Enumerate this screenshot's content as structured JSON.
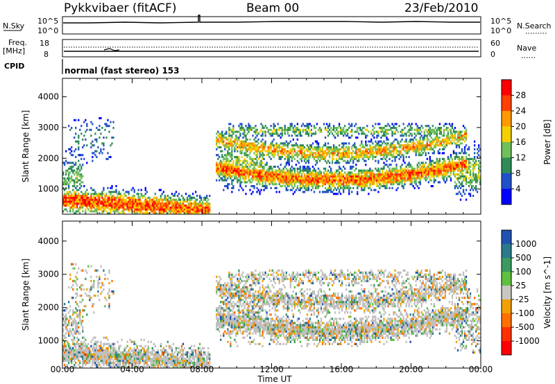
{
  "header": {
    "station": "Pykkvibaer (fitACF)",
    "beam": "Beam 00",
    "date": "23/Feb/2010"
  },
  "noise_panel": {
    "left_label": "N.Sky",
    "right_label": "N.Search",
    "left_ticks": [
      "10^5",
      "10^0"
    ],
    "right_ticks": [
      "10^5",
      "10^0"
    ]
  },
  "freq_panel": {
    "left_label_1": "Freq.",
    "left_label_2": "[MHz]",
    "left_ticks": [
      "18",
      "8"
    ],
    "right_label": "Nave",
    "right_ticks": [
      "60",
      "0"
    ]
  },
  "cpid_panel": {
    "label": "CPID",
    "text": "normal (fast stereo) 153"
  },
  "chart_data": [
    {
      "type": "heatmap",
      "name": "power",
      "ylabel": "Slant Range [km]",
      "yticks": [
        "1000",
        "2000",
        "3000",
        "4000"
      ],
      "ylim": [
        180,
        4600
      ],
      "colorbar_label": "Power [dB]",
      "colorbar_ticks": [
        "4",
        "8",
        "12",
        "16",
        "20",
        "24",
        "28"
      ],
      "colorbar_colors": [
        "#0000ff",
        "#2050c8",
        "#2e8b57",
        "#6fbf5a",
        "#f5d000",
        "#ff9a00",
        "#ff4000",
        "#ff0000"
      ]
    },
    {
      "type": "heatmap",
      "name": "velocity",
      "ylabel": "Slant Range [km]",
      "yticks": [
        "1000",
        "2000",
        "3000",
        "4000"
      ],
      "ylim": [
        180,
        4600
      ],
      "colorbar_label": "Velocity [m s^-1]",
      "colorbar_ticks": [
        "1000",
        "500",
        "100",
        "25",
        "-25",
        "-100",
        "-500",
        "-1000"
      ],
      "colorbar_colors": [
        "#2050b0",
        "#2a7a8a",
        "#3a9a60",
        "#60c040",
        "#c8c8c0",
        "#f0a000",
        "#ff7000",
        "#ff3000",
        "#ff0000"
      ]
    }
  ],
  "time_axis": {
    "xlabel": "Time UT",
    "ticks": [
      "00:00",
      "04:00",
      "08:00",
      "12:00",
      "16:00",
      "20:00",
      "00:00"
    ]
  },
  "colors": {
    "ground_scatter": "#c0c0c0"
  }
}
